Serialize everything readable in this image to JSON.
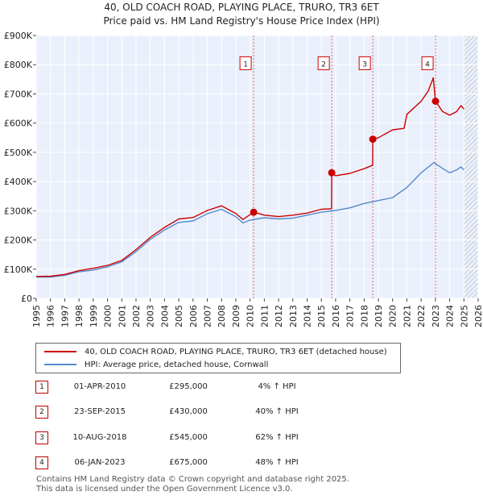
{
  "chart_data": {
    "type": "line",
    "title": "40, OLD COACH ROAD, PLAYING PLACE, TRURO, TR3 6ET",
    "subtitle": "Price paid vs. HM Land Registry's House Price Index (HPI)",
    "xlabel": "",
    "ylabel": "",
    "xlim": [
      1995,
      2026
    ],
    "ylim": [
      0,
      900000
    ],
    "x_ticks": [
      "1995",
      "1996",
      "1997",
      "1998",
      "1999",
      "2000",
      "2001",
      "2002",
      "2003",
      "2004",
      "2005",
      "2006",
      "2007",
      "2008",
      "2009",
      "2010",
      "2011",
      "2012",
      "2013",
      "2014",
      "2015",
      "2016",
      "2017",
      "2018",
      "2019",
      "2020",
      "2021",
      "2022",
      "2023",
      "2024",
      "2025",
      "2026"
    ],
    "y_ticks": [
      {
        "value": 0,
        "label": "£0"
      },
      {
        "value": 100000,
        "label": "£100K"
      },
      {
        "value": 200000,
        "label": "£200K"
      },
      {
        "value": 300000,
        "label": "£300K"
      },
      {
        "value": 400000,
        "label": "£400K"
      },
      {
        "value": 500000,
        "label": "£500K"
      },
      {
        "value": 600000,
        "label": "£600K"
      },
      {
        "value": 700000,
        "label": "£700K"
      },
      {
        "value": 800000,
        "label": "£800K"
      },
      {
        "value": 900000,
        "label": "£900K"
      }
    ],
    "grid": true,
    "projection_start": 2025.0,
    "series": [
      {
        "name": "40, OLD COACH ROAD, PLAYING PLACE, TRURO, TR3 6ET (detached house)",
        "color": "#cc0000",
        "x": [
          1995,
          1996,
          1997,
          1998,
          1999,
          2000,
          2001,
          2002,
          2003,
          2004,
          2005,
          2006,
          2007,
          2008,
          2009,
          2009.5,
          2010.25,
          2010.5,
          2011,
          2012,
          2013,
          2014,
          2015,
          2015.72,
          2015.73,
          2016,
          2017,
          2018,
          2018.6,
          2018.61,
          2019,
          2020,
          2020.8,
          2021,
          2022,
          2022.5,
          2022.85,
          2023.01,
          2023.5,
          2024,
          2024.5,
          2024.8,
          2025
        ],
        "y": [
          75000,
          76000,
          82000,
          95000,
          103000,
          113000,
          130000,
          167000,
          209000,
          243000,
          272000,
          277000,
          301000,
          317000,
          291000,
          270000,
          295000,
          292000,
          285000,
          280000,
          285000,
          292000,
          305000,
          307000,
          430000,
          420000,
          428000,
          444000,
          456000,
          545000,
          550000,
          577000,
          582000,
          630000,
          675000,
          710000,
          755000,
          675000,
          640000,
          627000,
          640000,
          660000,
          648000
        ]
      },
      {
        "name": "HPI: Average price, detached house, Cornwall",
        "color": "#5588cc",
        "x": [
          1995,
          1996,
          1997,
          1998,
          1999,
          2000,
          2001,
          2002,
          2003,
          2004,
          2005,
          2006,
          2007,
          2008,
          2009,
          2009.5,
          2010,
          2011,
          2012,
          2013,
          2014,
          2015,
          2016,
          2017,
          2018,
          2019,
          2020,
          2021,
          2022,
          2022.9,
          2023.5,
          2024,
          2024.5,
          2024.8,
          2025
        ],
        "y": [
          73000,
          73000,
          79000,
          91000,
          97000,
          108000,
          125000,
          160000,
          202000,
          234000,
          260000,
          265000,
          290000,
          305000,
          280000,
          258000,
          268000,
          276000,
          272000,
          275000,
          285000,
          295000,
          301000,
          310000,
          325000,
          335000,
          345000,
          380000,
          430000,
          465000,
          445000,
          430000,
          440000,
          450000,
          440000
        ]
      }
    ],
    "sales": [
      {
        "num": "1",
        "x": 2010.25,
        "price": 295000,
        "date": "01-APR-2010",
        "price_label": "£295,000",
        "hpi": "4% ↑ HPI"
      },
      {
        "num": "2",
        "x": 2015.73,
        "price": 430000,
        "date": "23-SEP-2015",
        "price_label": "£430,000",
        "hpi": "40% ↑ HPI"
      },
      {
        "num": "3",
        "x": 2018.61,
        "price": 545000,
        "date": "10-AUG-2018",
        "price_label": "£545,000",
        "hpi": "62% ↑ HPI"
      },
      {
        "num": "4",
        "x": 2023.01,
        "price": 675000,
        "date": "06-JAN-2023",
        "price_label": "£675,000",
        "hpi": "48% ↑ HPI"
      }
    ],
    "marker_box_value": 805000
  },
  "legend": {
    "property_label": "40, OLD COACH ROAD, PLAYING PLACE, TRURO, TR3 6ET (detached house)",
    "hpi_label": "HPI: Average price, detached house, Cornwall",
    "property_color": "#cc0000",
    "hpi_color": "#5588cc"
  },
  "footer": {
    "line1": "Contains HM Land Registry data © Crown copyright and database right 2025.",
    "line2": "This data is licensed under the Open Government Licence v3.0."
  }
}
